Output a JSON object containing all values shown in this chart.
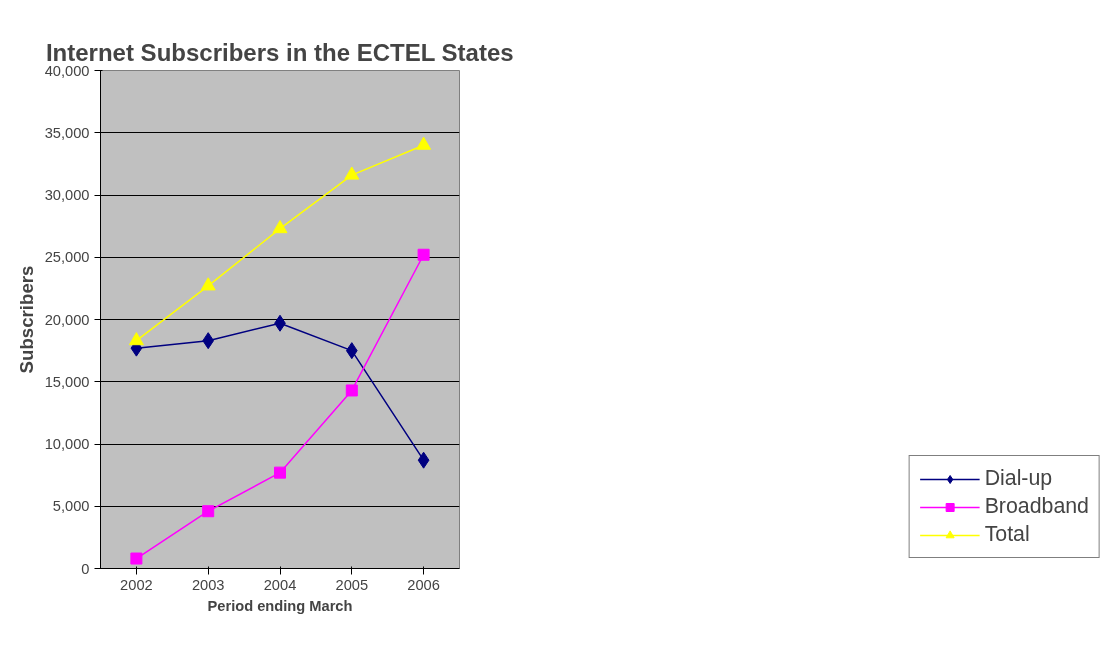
{
  "chart_data": {
    "type": "line",
    "title": "Internet Subscribers in the ECTEL States",
    "xlabel": "Period ending March",
    "ylabel": "Subscribers",
    "categories": [
      "2002",
      "2003",
      "2004",
      "2005",
      "2006"
    ],
    "series": [
      {
        "name": "Dial-up",
        "color": "#000080",
        "marker": "diamond",
        "values": [
          17700,
          18300,
          19700,
          17500,
          8700
        ]
      },
      {
        "name": "Broadband",
        "color": "#ff00ff",
        "marker": "square",
        "values": [
          800,
          4600,
          7700,
          14300,
          25200
        ]
      },
      {
        "name": "Total",
        "color": "#ffff00",
        "marker": "triangle",
        "values": [
          18300,
          22700,
          27300,
          31600,
          34000
        ]
      }
    ],
    "ylim": [
      0,
      40000
    ],
    "yticks": [
      0,
      {
        "value": 5000,
        "label": "5,000"
      },
      {
        "value": 10000,
        "label": "10,000"
      },
      {
        "value": 15000,
        "label": "15,000"
      },
      {
        "value": 20000,
        "label": "20,000"
      },
      {
        "value": 25000,
        "label": "25,000"
      },
      {
        "value": 30000,
        "label": "30,000"
      },
      {
        "value": 35000,
        "label": "35,000"
      },
      {
        "value": 40000,
        "label": "40,000"
      }
    ],
    "grid": "y",
    "legend": "bottom right",
    "line_style": "solid"
  }
}
